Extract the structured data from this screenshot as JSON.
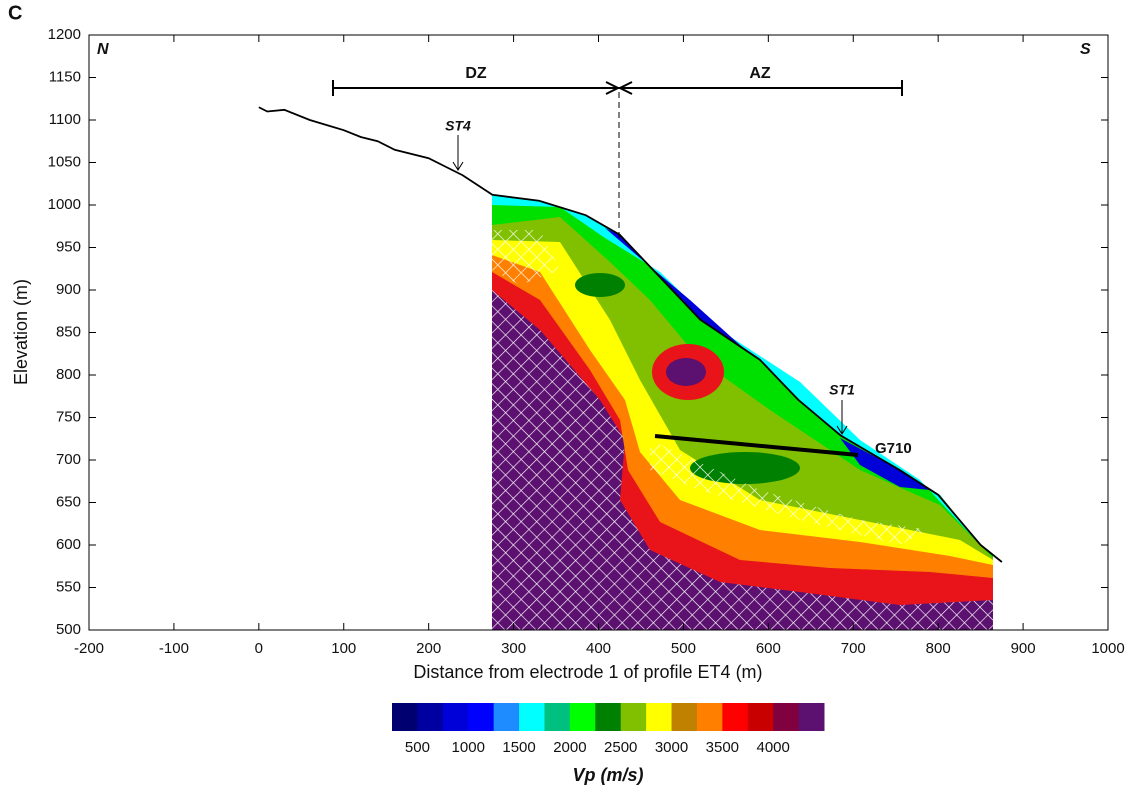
{
  "panel_label": "C",
  "chart_data": {
    "type": "line",
    "xlabel": "Distance from electrode 1 of profile ET4 (m)",
    "ylabel": "Elevation (m)",
    "x": [
      0,
      10,
      30,
      60,
      100,
      120,
      140,
      160,
      200,
      220,
      240,
      275,
      330,
      385,
      425,
      520,
      590,
      635,
      685,
      755,
      800,
      850,
      875
    ],
    "series": [
      {
        "color": "#000000",
        "values": [
          1115,
          1110,
          1112,
          1100,
          1088,
          1080,
          1075,
          1065,
          1055,
          1045,
          1035,
          1012,
          1005,
          988,
          965,
          865,
          818,
          771,
          729,
          688,
          659,
          600,
          580
        ]
      }
    ],
    "xlim": [
      -200,
      1000
    ],
    "ylim": [
      500,
      1200
    ],
    "xticks": [
      -200,
      -100,
      0,
      100,
      200,
      300,
      400,
      500,
      600,
      700,
      800,
      900,
      1000
    ],
    "yticks": [
      500,
      550,
      600,
      650,
      700,
      750,
      800,
      850,
      900,
      950,
      1000,
      1050,
      1100,
      1150,
      1200
    ],
    "annotations": [
      "N",
      "S",
      "DZ",
      "AZ",
      "ST4",
      "ST1",
      "G710"
    ],
    "colorbar": {
      "title": "Vp (m/s)",
      "lim": [
        250,
        4500
      ],
      "colors": [
        "#000070",
        "#0000a0",
        "#0000d8",
        "#0000ff",
        "#1e8cff",
        "#00ffff",
        "#00c080",
        "#00ff00",
        "#008000",
        "#80c000",
        "#ffff00",
        "#c08000",
        "#ff8000",
        "#ff0000",
        "#c80000",
        "#800040",
        "#5c1070"
      ],
      "ticks": [
        500,
        1000,
        1500,
        2000,
        2500,
        3000,
        3500,
        4000
      ]
    }
  }
}
